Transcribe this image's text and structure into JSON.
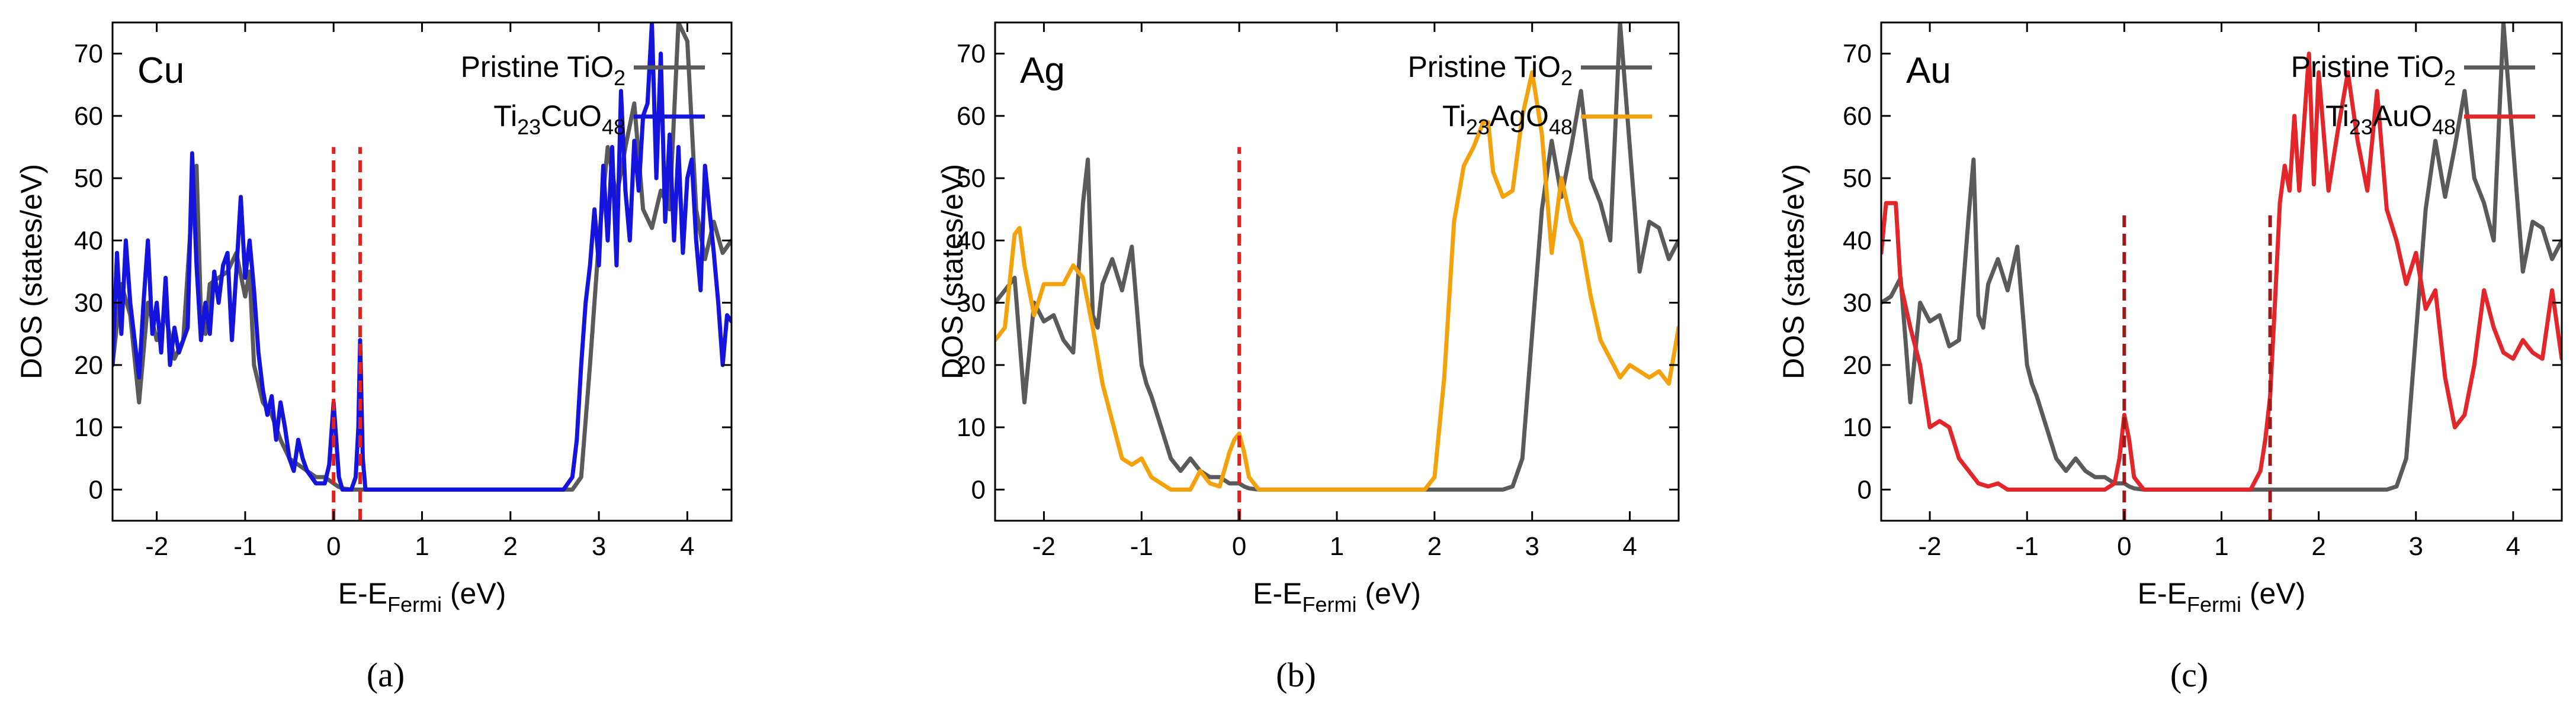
{
  "figure": {
    "captions": [
      "(a)",
      "(b)",
      "(c)"
    ],
    "pristine_color": "#5a5a5a",
    "marker_color": "#e8201a"
  },
  "chart_data": [
    {
      "type": "line",
      "panel_label": "Cu",
      "caption": "(a)",
      "xlabel_main": "E-E",
      "xlabel_sub": "Fermi",
      "xlabel_tail": " (eV)",
      "ylabel": "DOS (states/eV)",
      "xlim": [
        -2.5,
        4.5
      ],
      "ylim": [
        -5,
        75
      ],
      "xticks": [
        -2,
        -1,
        0,
        1,
        2,
        3,
        4
      ],
      "xtick_labels": [
        "-2",
        "-1",
        "0",
        "1",
        "2",
        "3",
        "4"
      ],
      "yticks": [
        0,
        10,
        20,
        30,
        40,
        50,
        60,
        70
      ],
      "ytick_labels": [
        "0",
        "10",
        "20",
        "30",
        "40",
        "50",
        "60",
        "70"
      ],
      "vlines": [
        0.0,
        0.3
      ],
      "vline_color": "#e8201a",
      "legend": [
        {
          "base": "Pristine TiO",
          "sub": "2",
          "rest": ""
        },
        {
          "base": "Ti",
          "sub": "23",
          "rest": "CuO",
          "sub2": "48"
        }
      ],
      "series": [
        {
          "name": "Pristine TiO2",
          "color": "#5a5a5a",
          "x": [
            -2.5,
            -2.4,
            -2.3,
            -2.2,
            -2.1,
            -2.0,
            -1.9,
            -1.8,
            -1.7,
            -1.6,
            -1.55,
            -1.5,
            -1.45,
            -1.4,
            -1.3,
            -1.2,
            -1.1,
            -1.0,
            -0.95,
            -0.9,
            -0.8,
            -0.7,
            -0.6,
            -0.5,
            -0.4,
            -0.3,
            -0.2,
            -0.1,
            0.0,
            0.05,
            0.1,
            0.2,
            0.3,
            0.5,
            1.0,
            2.0,
            2.7,
            2.8,
            2.9,
            3.0,
            3.1,
            3.2,
            3.3,
            3.4,
            3.5,
            3.6,
            3.7,
            3.8,
            3.9,
            4.0,
            4.1,
            4.2,
            4.3,
            4.4,
            4.5
          ],
          "y": [
            20,
            33,
            28,
            14,
            30,
            24,
            28,
            21,
            24,
            46,
            52,
            28,
            25,
            33,
            34,
            35,
            38,
            31,
            35,
            20,
            14,
            12,
            8,
            5,
            4,
            3,
            2,
            2,
            1,
            0.5,
            0.2,
            0,
            0,
            0,
            0,
            0,
            0,
            2,
            20,
            40,
            55,
            47,
            55,
            62,
            45,
            42,
            48,
            45,
            75,
            72,
            45,
            37,
            43,
            38,
            40
          ]
        },
        {
          "name": "Ti23CuO48",
          "color": "#1414dc",
          "x": [
            -2.5,
            -2.45,
            -2.4,
            -2.35,
            -2.3,
            -2.25,
            -2.2,
            -2.15,
            -2.1,
            -2.05,
            -2.0,
            -1.95,
            -1.9,
            -1.85,
            -1.8,
            -1.75,
            -1.7,
            -1.65,
            -1.6,
            -1.55,
            -1.5,
            -1.45,
            -1.4,
            -1.35,
            -1.3,
            -1.25,
            -1.2,
            -1.15,
            -1.1,
            -1.05,
            -1.0,
            -0.95,
            -0.9,
            -0.85,
            -0.8,
            -0.75,
            -0.7,
            -0.65,
            -0.6,
            -0.55,
            -0.5,
            -0.45,
            -0.4,
            -0.35,
            -0.3,
            -0.25,
            -0.2,
            -0.15,
            -0.1,
            -0.05,
            0.0,
            0.03,
            0.06,
            0.1,
            0.15,
            0.2,
            0.25,
            0.28,
            0.3,
            0.33,
            0.36,
            0.4,
            1.0,
            2.0,
            2.6,
            2.7,
            2.75,
            2.8,
            2.85,
            2.9,
            2.95,
            3.0,
            3.05,
            3.1,
            3.15,
            3.2,
            3.25,
            3.3,
            3.35,
            3.4,
            3.45,
            3.5,
            3.55,
            3.6,
            3.65,
            3.7,
            3.75,
            3.8,
            3.85,
            3.9,
            3.95,
            4.0,
            4.05,
            4.1,
            4.15,
            4.2,
            4.25,
            4.3,
            4.35,
            4.4,
            4.45,
            4.5
          ],
          "y": [
            20,
            38,
            25,
            40,
            30,
            24,
            18,
            30,
            40,
            25,
            30,
            22,
            34,
            20,
            26,
            22,
            24,
            26,
            54,
            36,
            24,
            30,
            25,
            35,
            30,
            36,
            38,
            24,
            35,
            47,
            34,
            40,
            32,
            22,
            16,
            12,
            15,
            8,
            14,
            10,
            5,
            3,
            8,
            5,
            3,
            2,
            1,
            1,
            1,
            4,
            14,
            8,
            2,
            0,
            0,
            0,
            2,
            10,
            24,
            5,
            0,
            0,
            0,
            0,
            0,
            2,
            8,
            20,
            30,
            36,
            45,
            36,
            52,
            40,
            55,
            36,
            64,
            48,
            40,
            56,
            48,
            60,
            62,
            75,
            50,
            70,
            43,
            57,
            40,
            55,
            38,
            50,
            53,
            40,
            32,
            52,
            45,
            38,
            30,
            20,
            28,
            27
          ]
        }
      ]
    },
    {
      "type": "line",
      "panel_label": "Ag",
      "caption": "(b)",
      "xlabel_main": "E-E",
      "xlabel_sub": "Fermi",
      "xlabel_tail": " (eV)",
      "ylabel": "DOS (states/eV)",
      "xlim": [
        -2.5,
        4.5
      ],
      "ylim": [
        -5,
        75
      ],
      "xticks": [
        -2,
        -1,
        0,
        1,
        2,
        3,
        4
      ],
      "xtick_labels": [
        "-2",
        "-1",
        "0",
        "1",
        "2",
        "3",
        "4"
      ],
      "yticks": [
        0,
        10,
        20,
        30,
        40,
        50,
        60,
        70
      ],
      "ytick_labels": [
        "0",
        "10",
        "20",
        "30",
        "40",
        "50",
        "60",
        "70"
      ],
      "vlines": [
        0.0
      ],
      "vline_color": "#e8201a",
      "legend": [
        {
          "base": "Pristine TiO",
          "sub": "2",
          "rest": ""
        },
        {
          "base": "Ti",
          "sub": "23",
          "rest": "AgO",
          "sub2": "48"
        }
      ],
      "series": [
        {
          "name": "Pristine TiO2",
          "color": "#5a5a5a",
          "x": [
            -2.5,
            -2.4,
            -2.3,
            -2.2,
            -2.1,
            -2.0,
            -1.9,
            -1.8,
            -1.7,
            -1.6,
            -1.55,
            -1.5,
            -1.45,
            -1.4,
            -1.3,
            -1.2,
            -1.1,
            -1.0,
            -0.95,
            -0.9,
            -0.8,
            -0.7,
            -0.6,
            -0.5,
            -0.4,
            -0.3,
            -0.2,
            -0.1,
            0.0,
            0.05,
            0.1,
            0.2,
            0.5,
            1.0,
            2.0,
            2.7,
            2.8,
            2.9,
            3.0,
            3.1,
            3.2,
            3.3,
            3.4,
            3.5,
            3.6,
            3.7,
            3.8,
            3.9,
            4.0,
            4.1,
            4.2,
            4.3,
            4.4,
            4.5
          ],
          "y": [
            30,
            32,
            34,
            14,
            30,
            27,
            28,
            24,
            22,
            46,
            53,
            28,
            26,
            33,
            37,
            32,
            39,
            20,
            17,
            15,
            10,
            5,
            3,
            5,
            3,
            2,
            2,
            1,
            1,
            0.5,
            0.2,
            0,
            0,
            0,
            0,
            0,
            0.5,
            5,
            25,
            45,
            56,
            47,
            55,
            64,
            50,
            46,
            40,
            75,
            55,
            35,
            43,
            42,
            37,
            40
          ]
        },
        {
          "name": "Ti23AgO48",
          "color": "#f4a20c",
          "x": [
            -2.5,
            -2.4,
            -2.3,
            -2.25,
            -2.2,
            -2.1,
            -2.0,
            -1.9,
            -1.8,
            -1.7,
            -1.65,
            -1.6,
            -1.5,
            -1.4,
            -1.3,
            -1.2,
            -1.1,
            -1.0,
            -0.9,
            -0.8,
            -0.7,
            -0.6,
            -0.5,
            -0.4,
            -0.3,
            -0.2,
            -0.1,
            -0.05,
            0.0,
            0.05,
            0.1,
            0.2,
            0.5,
            1.0,
            1.5,
            1.9,
            2.0,
            2.1,
            2.2,
            2.3,
            2.4,
            2.5,
            2.55,
            2.6,
            2.7,
            2.8,
            2.9,
            3.0,
            3.1,
            3.2,
            3.3,
            3.4,
            3.5,
            3.6,
            3.7,
            3.8,
            3.9,
            4.0,
            4.1,
            4.2,
            4.3,
            4.4,
            4.5
          ],
          "y": [
            24,
            26,
            41,
            42,
            36,
            28,
            33,
            33,
            33,
            36,
            35,
            34,
            26,
            17,
            11,
            5,
            4,
            5,
            2,
            1,
            0,
            0,
            0,
            3,
            1,
            0.5,
            6,
            8,
            9,
            6,
            2,
            0,
            0,
            0,
            0,
            0,
            2,
            18,
            43,
            52,
            55,
            59,
            59,
            51,
            47,
            48,
            60,
            67,
            57,
            38,
            50,
            43,
            40,
            31,
            24,
            21,
            18,
            20,
            19,
            18,
            19,
            17,
            26
          ]
        }
      ]
    },
    {
      "type": "line",
      "panel_label": "Au",
      "caption": "(c)",
      "xlabel_main": "E-E",
      "xlabel_sub": "Fermi",
      "xlabel_tail": " (eV)",
      "ylabel": "DOS (states/eV)",
      "xlim": [
        -2.5,
        4.5
      ],
      "ylim": [
        -5,
        75
      ],
      "xticks": [
        -2,
        -1,
        0,
        1,
        2,
        3,
        4
      ],
      "xtick_labels": [
        "-2",
        "-1",
        "0",
        "1",
        "2",
        "3",
        "4"
      ],
      "yticks": [
        0,
        10,
        20,
        30,
        40,
        50,
        60,
        70
      ],
      "ytick_labels": [
        "0",
        "10",
        "20",
        "30",
        "40",
        "50",
        "60",
        "70"
      ],
      "vlines": [
        0.0,
        1.5
      ],
      "vline_color": "#9c1a1a",
      "vline_ymax": 45,
      "legend": [
        {
          "base": "Pristine TiO",
          "sub": "2",
          "rest": ""
        },
        {
          "base": "Ti",
          "sub": "23",
          "rest": "AuO",
          "sub2": "48"
        }
      ],
      "series": [
        {
          "name": "Pristine TiO2",
          "color": "#5a5a5a",
          "x": [
            -2.5,
            -2.4,
            -2.3,
            -2.2,
            -2.1,
            -2.0,
            -1.9,
            -1.8,
            -1.7,
            -1.6,
            -1.55,
            -1.5,
            -1.45,
            -1.4,
            -1.3,
            -1.2,
            -1.1,
            -1.0,
            -0.95,
            -0.9,
            -0.8,
            -0.7,
            -0.6,
            -0.5,
            -0.4,
            -0.3,
            -0.2,
            -0.1,
            0.0,
            0.05,
            0.1,
            0.2,
            0.5,
            1.0,
            2.0,
            2.7,
            2.8,
            2.9,
            3.0,
            3.1,
            3.2,
            3.3,
            3.4,
            3.5,
            3.6,
            3.7,
            3.8,
            3.9,
            4.0,
            4.1,
            4.2,
            4.3,
            4.4,
            4.5
          ],
          "y": [
            30,
            31,
            34,
            14,
            30,
            27,
            28,
            23,
            24,
            44,
            53,
            28,
            26,
            33,
            37,
            32,
            39,
            20,
            17,
            15,
            10,
            5,
            3,
            5,
            3,
            2,
            2,
            1,
            1,
            0.5,
            0.2,
            0,
            0,
            0,
            0,
            0,
            0.5,
            5,
            25,
            45,
            56,
            47,
            55,
            64,
            50,
            46,
            40,
            75,
            55,
            35,
            43,
            42,
            37,
            40
          ]
        },
        {
          "name": "Ti23AuO48",
          "color": "#e2262a",
          "x": [
            -2.5,
            -2.45,
            -2.4,
            -2.35,
            -2.3,
            -2.2,
            -2.1,
            -2.0,
            -1.9,
            -1.8,
            -1.7,
            -1.6,
            -1.5,
            -1.4,
            -1.3,
            -1.2,
            -1.1,
            -1.0,
            -0.9,
            -0.8,
            -0.7,
            -0.6,
            -0.5,
            -0.4,
            -0.3,
            -0.2,
            -0.1,
            -0.05,
            0.0,
            0.05,
            0.1,
            0.2,
            0.5,
            1.0,
            1.3,
            1.4,
            1.45,
            1.5,
            1.55,
            1.6,
            1.65,
            1.7,
            1.75,
            1.8,
            1.85,
            1.9,
            1.95,
            2.0,
            2.1,
            2.2,
            2.3,
            2.4,
            2.5,
            2.6,
            2.7,
            2.8,
            2.9,
            3.0,
            3.1,
            3.2,
            3.3,
            3.4,
            3.5,
            3.6,
            3.7,
            3.8,
            3.9,
            4.0,
            4.1,
            4.2,
            4.3,
            4.4,
            4.5
          ],
          "y": [
            38,
            46,
            46,
            46,
            33,
            26,
            20,
            10,
            11,
            10,
            5,
            3,
            1,
            0.5,
            1,
            0,
            0,
            0,
            0,
            0,
            0,
            0,
            0,
            0,
            0,
            0,
            1,
            5,
            12,
            8,
            2,
            0,
            0,
            0,
            0,
            3,
            8,
            15,
            30,
            46,
            52,
            48,
            60,
            48,
            59,
            70,
            49,
            67,
            48,
            58,
            67,
            56,
            48,
            64,
            45,
            40,
            33,
            38,
            29,
            32,
            18,
            10,
            12,
            20,
            32,
            26,
            22,
            21,
            24,
            22,
            21,
            32,
            21
          ]
        }
      ]
    }
  ]
}
